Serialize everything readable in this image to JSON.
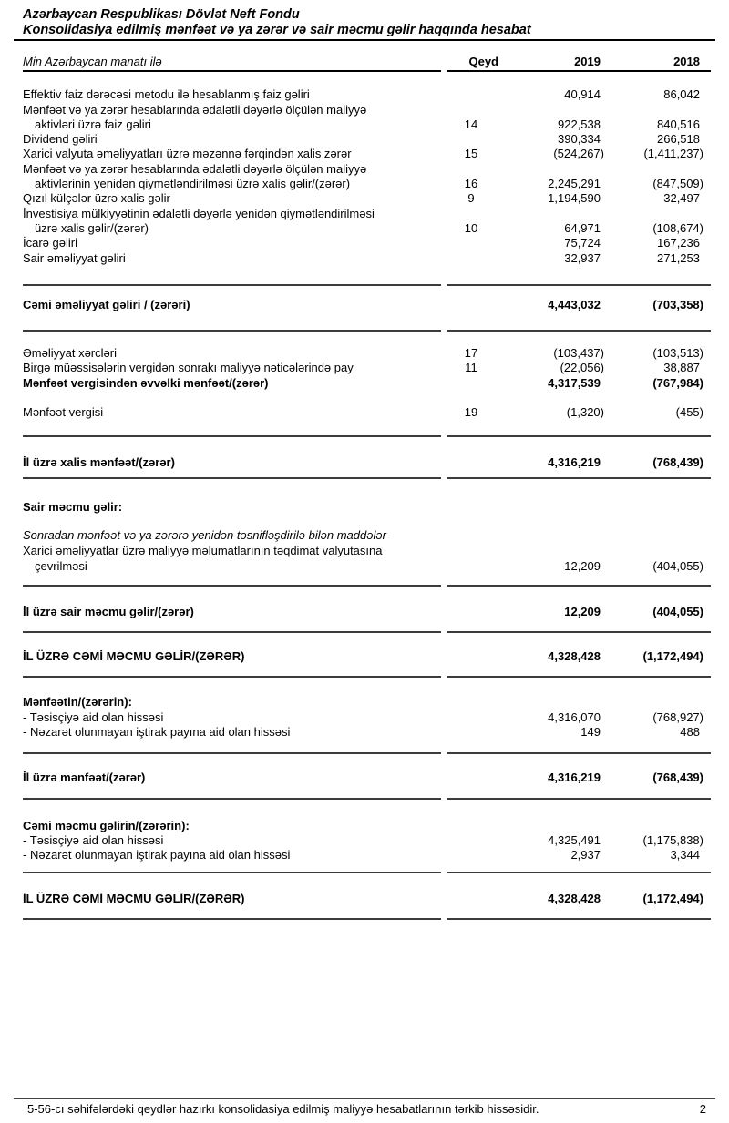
{
  "header": {
    "org": "Azərbaycan Respublikası Dövlət Neft Fondu",
    "title": "Konsolidasiya edilmiş mənfəət və ya zərər və sair məcmu gəlir haqqında hesabat"
  },
  "table": {
    "unit_label": "Min Azərbaycan manatı ilə",
    "col_note": "Qeyd",
    "col_2019": "2019",
    "col_2018": "2018",
    "rows": {
      "effektiv": {
        "label": "Effektiv faiz dərəcəsi metodu ilə hesablanmış faiz gəliri",
        "qeyd": "",
        "v19": "40,914",
        "v18": "86,042"
      },
      "faiz_aktivleri": {
        "label1": "Mənfəət və ya zərər hesablarında ədalətli dəyərlə ölçülən maliyyə",
        "label2": "aktivləri üzrə faiz gəliri",
        "qeyd": "14",
        "v19": "922,538",
        "v18": "840,516"
      },
      "dividend": {
        "label": "Dividend gəliri",
        "qeyd": "",
        "v19": "390,334",
        "v18": "266,518"
      },
      "mezenne": {
        "label": "Xarici valyuta əməliyyatları üzrə məzənnə fərqindən xalis zərər",
        "qeyd": "15",
        "v19": "(524,267)",
        "v18": "(1,411,237)"
      },
      "yeniden_qiymet": {
        "label1": "Mənfəət və ya zərər hesablarında ədalətli dəyərlə ölçülən maliyyə",
        "label2": "aktivlərinin yenidən qiymətləndirilməsi üzrə xalis gəlir/(zərər)",
        "qeyd": "16",
        "v19": "2,245,291",
        "v18": "(847,509)"
      },
      "qizil": {
        "label": "Qızıl külçələr üzrə xalis gəlir",
        "qeyd": "9",
        "v19": "1,194,590",
        "v18": "32,497"
      },
      "investisiya": {
        "label1": "İnvestisiya mülkiyyətinin ədalətli dəyərlə yenidən qiymətləndirilməsi",
        "label2": "üzrə xalis gəlir/(zərər)",
        "qeyd": "10",
        "v19": "64,971",
        "v18": "(108,674)"
      },
      "icare": {
        "label": "İcarə gəliri",
        "qeyd": "",
        "v19": "75,724",
        "v18": "167,236"
      },
      "sair_emeliyyat": {
        "label": "Sair əməliyyat gəliri",
        "qeyd": "",
        "v19": "32,937",
        "v18": "271,253"
      },
      "cemi_emeliyyat": {
        "label": "Cəmi əməliyyat gəliri / (zərəri)",
        "qeyd": "",
        "v19": "4,443,032",
        "v18": "(703,358)"
      },
      "emeliyyat_xerc": {
        "label": "Əməliyyat xərcləri",
        "qeyd": "17",
        "v19": "(103,437)",
        "v18": "(103,513)"
      },
      "birge": {
        "label": "Birgə müəssisələrin vergidən sonrakı maliyyə nəticələrində pay",
        "qeyd": "11",
        "v19": "(22,056)",
        "v18": "38,887"
      },
      "vergiden_evvel": {
        "label": "Mənfəət vergisindən əvvəlki mənfəət/(zərər)",
        "qeyd": "",
        "v19": "4,317,539",
        "v18": "(767,984)"
      },
      "menfeet_vergisi": {
        "label": "Mənfəət vergisi",
        "qeyd": "19",
        "v19": "(1,320)",
        "v18": "(455)"
      },
      "xalis_menfeet": {
        "label": "İl üzrə xalis mənfəət/(zərər)",
        "qeyd": "",
        "v19": "4,316,219",
        "v18": "(768,439)"
      },
      "sair_mecmu_head": {
        "label": "Sair məcmu gəlir:"
      },
      "tesniflesdirile": {
        "label": "Sonradan mənfəət və ya zərərə yenidən təsnifləşdirilə bilən maddələr"
      },
      "valyuta_cevril": {
        "label1": "Xarici əməliyyatlar üzrə maliyyə məlumatlarının təqdimat valyutasına",
        "label2": "çevrilməsi",
        "qeyd": "",
        "v19": "12,209",
        "v18": "(404,055)"
      },
      "sair_mecmu_tot": {
        "label": "İl üzrə sair məcmu gəlir/(zərər)",
        "qeyd": "",
        "v19": "12,209",
        "v18": "(404,055)"
      },
      "cemi_mecmu_1": {
        "label": "İL ÜZRƏ CƏMİ MƏCMU GƏLİR/(ZƏRƏR)",
        "qeyd": "",
        "v19": "4,328,428",
        "v18": "(1,172,494)"
      },
      "menfeetin_head": {
        "label": "Mənfəətin/(zərərin):"
      },
      "tesisciye_1": {
        "label": "- Təsisçiyə aid olan hissəsi",
        "qeyd": "",
        "v19": "4,316,070",
        "v18": "(768,927)"
      },
      "nezaret_1": {
        "label": "- Nəzarət olunmayan iştirak payına aid olan hissəsi",
        "qeyd": "",
        "v19": "149",
        "v18": "488"
      },
      "il_uzre_menfeet": {
        "label": "İl üzrə mənfəət/(zərər)",
        "qeyd": "",
        "v19": "4,316,219",
        "v18": "(768,439)"
      },
      "cemi_mecmu_head": {
        "label": "Cəmi məcmu gəlirin/(zərərin):"
      },
      "tesisciye_2": {
        "label": "- Təsisçiyə aid olan hissəsi",
        "qeyd": "",
        "v19": "4,325,491",
        "v18": "(1,175,838)"
      },
      "nezaret_2": {
        "label": "- Nəzarət olunmayan iştirak payına aid olan hissəsi",
        "qeyd": "",
        "v19": "2,937",
        "v18": "3,344"
      },
      "cemi_mecmu_2": {
        "label": "İL ÜZRƏ CƏMİ MƏCMU GƏLİR/(ZƏRƏR)",
        "qeyd": "",
        "v19": "4,328,428",
        "v18": "(1,172,494)"
      }
    }
  },
  "footer": {
    "note": "5-56-cı səhifələrdəki qeydlər hazırkı konsolidasiya edilmiş maliyyə hesabatlarının tərkib hissəsidir.",
    "page": "2"
  }
}
